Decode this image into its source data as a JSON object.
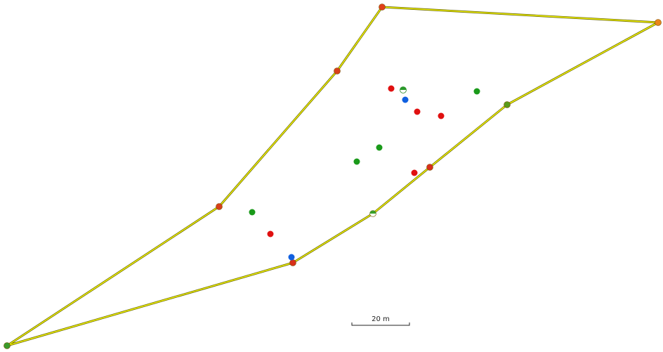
{
  "scale_bar": {
    "label": "20 m"
  }
}
